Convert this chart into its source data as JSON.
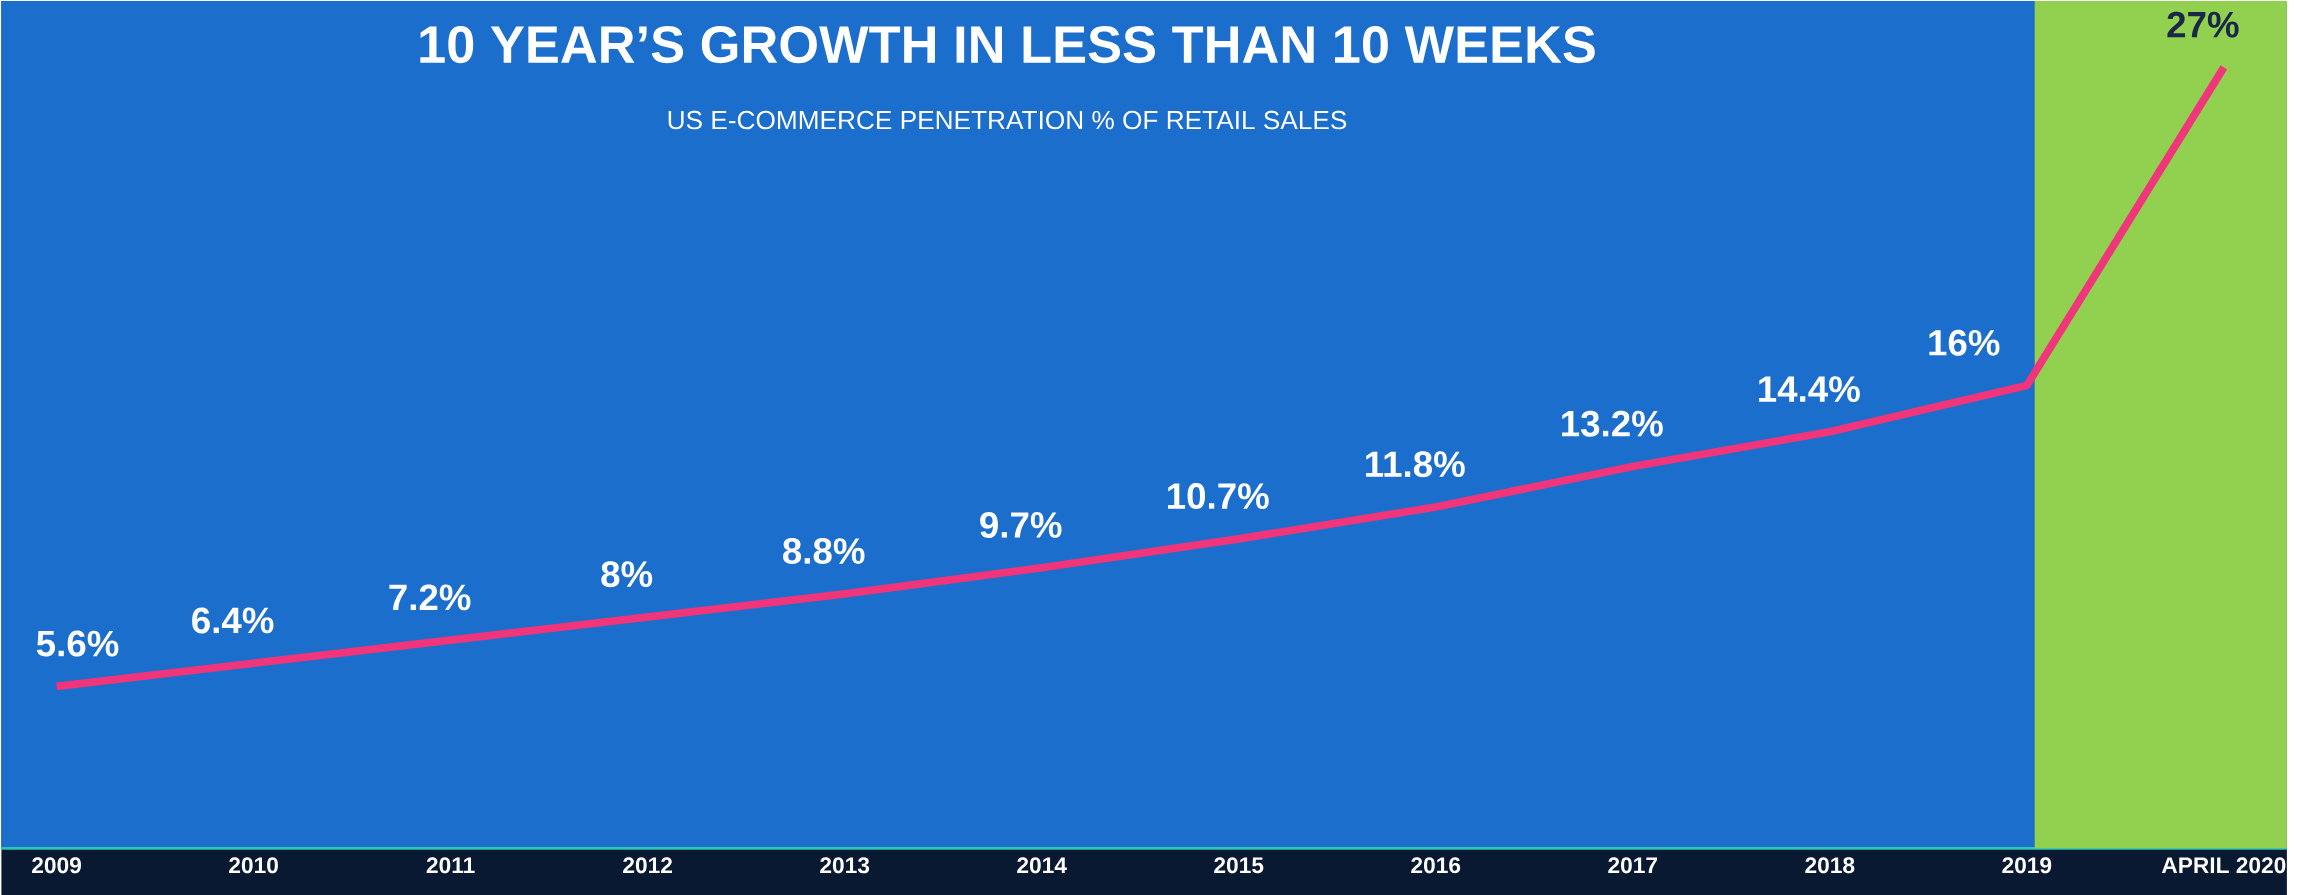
{
  "chart_data": {
    "type": "line",
    "title": "10 YEAR’S GROWTH IN LESS THAN 10 WEEKS",
    "subtitle": "US E-COMMERCE PENETRATION % OF RETAIL SALES",
    "categories": [
      "2009",
      "2010",
      "2011",
      "2012",
      "2013",
      "2014",
      "2015",
      "2016",
      "2017",
      "2018",
      "2019",
      "APRIL 2020"
    ],
    "values": [
      5.6,
      6.4,
      7.2,
      8,
      8.8,
      9.7,
      10.7,
      11.8,
      13.2,
      14.4,
      16,
      27
    ],
    "value_labels": [
      "5.6%",
      "6.4%",
      "7.2%",
      "8%",
      "8.8%",
      "9.7%",
      "10.7%",
      "11.8%",
      "13.2%",
      "14.4%",
      "16%",
      "27%"
    ],
    "color": "#f0357a",
    "bands": [
      {
        "axis": "x",
        "from": "2019",
        "to": "APRIL 2020",
        "color": "#92d050"
      }
    ]
  }
}
